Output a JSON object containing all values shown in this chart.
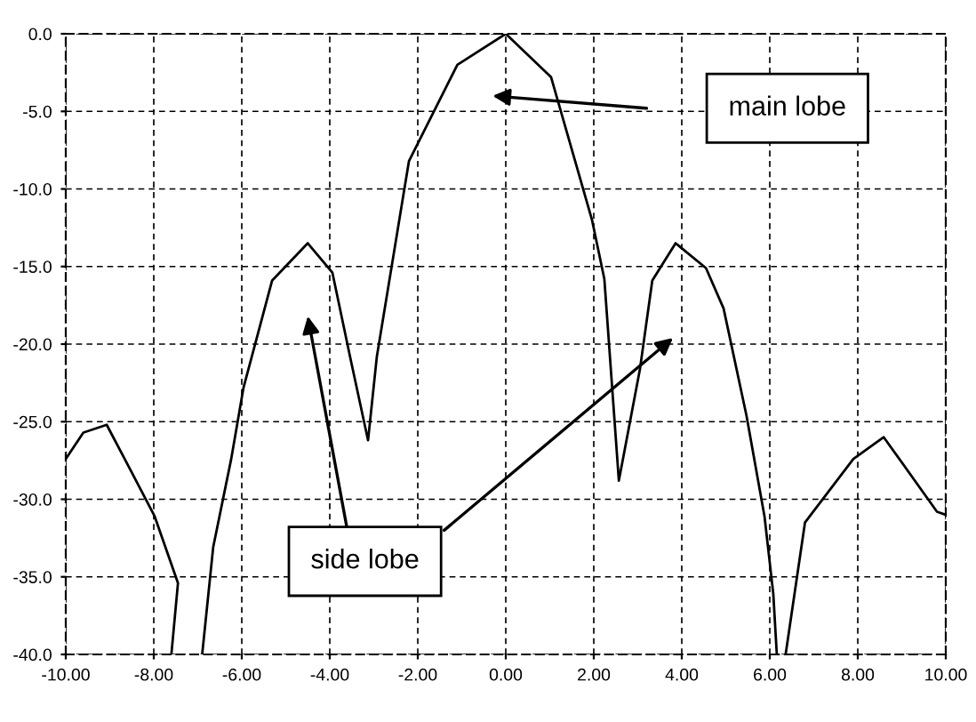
{
  "chart_data": {
    "type": "line",
    "series": [
      {
        "color": "#000000",
        "x": [
          -10,
          -9.6,
          -9.07,
          -8.55,
          -7.98,
          -7.45,
          -7.6
        ],
        "values": [
          -27.4,
          -25.7,
          -25.2,
          -28,
          -31.1,
          -35.4,
          -40
        ]
      },
      {
        "color": "#000000",
        "x": [
          -6.9,
          -6.65,
          -6.24,
          -5.96,
          -5.31,
          -4.5,
          -3.94,
          -3.54,
          -3.13,
          -2.93,
          -2.2,
          -1.1,
          0,
          1.03,
          1.96,
          2.24,
          2.57,
          3.05,
          3.33,
          3.86,
          4.55,
          4.95,
          5.47,
          5.88,
          6.08,
          6.16
        ],
        "values": [
          -40,
          -33.1,
          -27.4,
          -22.8,
          -15.9,
          -13.5,
          -15.4,
          -20.8,
          -26.2,
          -20.8,
          -8.2,
          -2.0,
          0,
          -2.8,
          -12,
          -15.8,
          -28.8,
          -21.6,
          -15.9,
          -13.5,
          -15.1,
          -17.7,
          -24.6,
          -31.1,
          -36.1,
          -40
        ]
      },
      {
        "color": "#000000",
        "x": [
          6.36,
          6.8,
          7.9,
          8.59,
          9.8,
          10
        ],
        "values": [
          -40,
          -31.5,
          -27.4,
          -26,
          -30.8,
          -31
        ]
      }
    ],
    "xlim": [
      -10,
      10
    ],
    "ylim": [
      -40,
      0
    ],
    "xticks": [
      {
        "value": -10,
        "label": "-10.00"
      },
      {
        "value": -8,
        "label": "-8.00"
      },
      {
        "value": -6,
        "label": "-6.00"
      },
      {
        "value": -4,
        "label": "-4.00"
      },
      {
        "value": -2,
        "label": "-2.00"
      },
      {
        "value": 0,
        "label": "0.00"
      },
      {
        "value": 2,
        "label": "2.00"
      },
      {
        "value": 4,
        "label": "4.00"
      },
      {
        "value": 6,
        "label": "6.00"
      },
      {
        "value": 8,
        "label": "8.00"
      },
      {
        "value": 10,
        "label": "10.00"
      }
    ],
    "yticks": [
      {
        "value": 0,
        "label": "0.0"
      },
      {
        "value": -5,
        "label": "-5.0"
      },
      {
        "value": -10,
        "label": "-10.0"
      },
      {
        "value": -15,
        "label": "-15.0"
      },
      {
        "value": -20,
        "label": "-20.0"
      },
      {
        "value": -25,
        "label": "-25.0"
      },
      {
        "value": -30,
        "label": "-30.0"
      },
      {
        "value": -35,
        "label": "-35.0"
      },
      {
        "value": -40,
        "label": "-40.0"
      }
    ],
    "grid": true,
    "line_style": "solid",
    "marker": "none",
    "annotations": [
      "main lobe",
      "side lobe"
    ]
  }
}
